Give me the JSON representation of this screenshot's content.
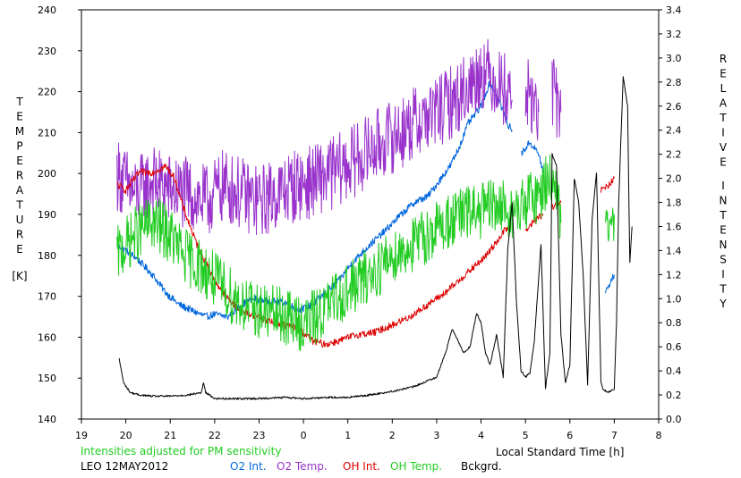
{
  "chart_data": {
    "type": "line",
    "left_axis": {
      "label_letters": [
        "T",
        "E",
        "M",
        "P",
        "E",
        "R",
        "A",
        "T",
        "U",
        "R",
        "E"
      ],
      "unit": "[K]",
      "ticks": [
        "140",
        "150",
        "160",
        "170",
        "180",
        "190",
        "200",
        "210",
        "220",
        "230",
        "240"
      ],
      "ylim": [
        140,
        240
      ]
    },
    "right_axis": {
      "label_word1": [
        "R",
        "E",
        "L",
        "A",
        "T",
        "I",
        "V",
        "E"
      ],
      "label_word2": [
        "I",
        "N",
        "T",
        "E",
        "N",
        "S",
        "I",
        "T",
        "Y"
      ],
      "ticks": [
        "0.0",
        "0.2",
        "0.4",
        "0.6",
        "0.8",
        "1.0",
        "1.2",
        "1.4",
        "1.6",
        "1.8",
        "2.0",
        "2.2",
        "2.4",
        "2.6",
        "2.8",
        "3.0",
        "3.2",
        "3.4"
      ],
      "ylim": [
        0,
        3.4
      ]
    },
    "x_axis": {
      "ticks": [
        "19",
        "20",
        "21",
        "22",
        "23",
        "0",
        "1",
        "2",
        "3",
        "4",
        "5",
        "6",
        "7",
        "8"
      ],
      "xlim": [
        19,
        32
      ],
      "label": "Local Standard Time [h]"
    },
    "series": [
      {
        "name": "O2 Int.",
        "axis": "right",
        "color": "#0066dd",
        "noise": 0.03,
        "x": [
          19.8,
          20.2,
          20.6,
          20.9,
          21.2,
          21.5,
          21.8,
          22.0,
          22.3,
          22.6,
          22.9,
          23.2,
          23.6,
          23.9,
          24.2,
          24.5,
          24.8,
          25.1,
          25.5,
          25.8,
          26.2,
          26.5,
          26.8,
          27.0,
          27.3,
          27.5,
          27.7,
          28.0,
          28.2,
          28.4,
          28.6,
          28.7,
          null,
          28.9,
          29.1,
          29.3,
          29.4,
          null,
          30.8,
          31.0
        ],
        "y": [
          1.45,
          1.35,
          1.2,
          1.05,
          0.95,
          0.9,
          0.85,
          0.87,
          0.85,
          0.95,
          1.0,
          0.98,
          0.97,
          0.9,
          0.95,
          1.05,
          1.15,
          1.3,
          1.45,
          1.55,
          1.7,
          1.8,
          1.85,
          1.95,
          2.1,
          2.25,
          2.45,
          2.6,
          2.8,
          2.65,
          2.45,
          2.4,
          null,
          2.2,
          2.3,
          2.2,
          2.05,
          null,
          1.05,
          1.2
        ]
      },
      {
        "name": "O2 Temp.",
        "axis": "left",
        "color": "#9933cc",
        "noise": 9,
        "x": [
          19.8,
          20.2,
          20.6,
          21.0,
          21.4,
          21.8,
          22.2,
          22.6,
          23.0,
          23.4,
          23.8,
          24.2,
          24.6,
          25.0,
          25.4,
          25.8,
          26.2,
          26.6,
          27.0,
          27.4,
          27.8,
          28.0,
          28.2,
          28.4,
          28.6,
          28.7,
          null,
          29.0,
          29.3,
          null,
          29.6,
          29.8
        ],
        "y": [
          200,
          195,
          198,
          196,
          195,
          193,
          197,
          195,
          193,
          195,
          197,
          198,
          200,
          202,
          205,
          208,
          210,
          213,
          215,
          218,
          222,
          225,
          224,
          222,
          220,
          218,
          null,
          220,
          215,
          null,
          220,
          215
        ]
      },
      {
        "name": "OH Int.",
        "axis": "right",
        "color": "#dd0000",
        "noise": 0.03,
        "x": [
          19.8,
          20.0,
          20.3,
          20.6,
          20.9,
          21.1,
          21.3,
          21.6,
          22.0,
          22.3,
          22.6,
          23.0,
          23.3,
          23.6,
          23.9,
          24.2,
          24.5,
          24.8,
          25.2,
          25.6,
          26.0,
          26.4,
          26.8,
          27.2,
          27.5,
          27.8,
          28.1,
          28.4,
          28.6,
          null,
          29.0,
          29.2,
          29.4,
          null,
          29.6,
          29.8,
          null,
          30.7,
          30.9,
          31.0
        ],
        "y": [
          1.95,
          1.9,
          2.05,
          2.05,
          2.1,
          2.0,
          1.75,
          1.45,
          1.15,
          1.0,
          0.9,
          0.85,
          0.8,
          0.78,
          0.75,
          0.65,
          0.62,
          0.65,
          0.7,
          0.72,
          0.78,
          0.85,
          0.95,
          1.05,
          1.15,
          1.25,
          1.35,
          1.5,
          1.6,
          null,
          1.55,
          1.65,
          1.7,
          null,
          1.75,
          1.8,
          null,
          1.9,
          1.95,
          2.0
        ]
      },
      {
        "name": "OH Temp.",
        "axis": "left",
        "color": "#22cc22",
        "noise": 7,
        "x": [
          19.8,
          20.2,
          20.6,
          21.0,
          21.3,
          21.6,
          22.0,
          22.4,
          22.8,
          23.2,
          23.6,
          24.0,
          24.4,
          24.8,
          25.2,
          25.6,
          26.0,
          26.4,
          26.8,
          27.2,
          27.6,
          28.0,
          28.4,
          28.8,
          29.0,
          29.3,
          29.6,
          29.8,
          null,
          30.8,
          31.0
        ],
        "y": [
          180,
          185,
          188,
          185,
          180,
          178,
          174,
          170,
          167,
          166,
          165,
          163,
          166,
          170,
          173,
          176,
          180,
          182,
          185,
          188,
          190,
          191,
          192,
          190,
          193,
          195,
          200,
          188,
          null,
          185,
          190
        ]
      },
      {
        "name": "Bckgrd.",
        "axis": "right",
        "color": "#000000",
        "noise": 0.008,
        "x": [
          19.85,
          19.95,
          20.1,
          20.3,
          20.6,
          21.0,
          21.4,
          21.7,
          21.75,
          21.8,
          22.0,
          22.4,
          23.0,
          23.6,
          24.0,
          24.5,
          25.0,
          25.5,
          26.0,
          26.5,
          27.0,
          27.2,
          27.35,
          27.45,
          27.6,
          27.75,
          27.9,
          28.0,
          28.1,
          28.2,
          28.35,
          28.5,
          28.6,
          28.7,
          28.8,
          28.9,
          29.0,
          29.1,
          29.2,
          29.35,
          29.45,
          29.55,
          29.6,
          29.7,
          29.8,
          29.9,
          30.0,
          30.1,
          30.2,
          30.3,
          30.4,
          30.5,
          30.6,
          30.7,
          30.75,
          30.85,
          31.0,
          31.05,
          31.1,
          31.2,
          31.3,
          31.35,
          31.4
        ],
        "y": [
          0.5,
          0.3,
          0.22,
          0.2,
          0.19,
          0.19,
          0.2,
          0.22,
          0.3,
          0.22,
          0.17,
          0.17,
          0.17,
          0.18,
          0.17,
          0.18,
          0.18,
          0.2,
          0.23,
          0.27,
          0.35,
          0.55,
          0.75,
          0.68,
          0.55,
          0.6,
          0.88,
          0.8,
          0.55,
          0.45,
          0.7,
          0.35,
          1.4,
          1.8,
          0.95,
          0.4,
          0.35,
          0.38,
          0.65,
          1.45,
          0.25,
          0.55,
          2.2,
          2.1,
          0.7,
          0.3,
          0.45,
          2.0,
          1.8,
          1.2,
          0.28,
          1.65,
          2.05,
          0.3,
          0.25,
          0.22,
          0.25,
          0.8,
          1.8,
          2.85,
          2.6,
          1.3,
          1.6
        ]
      }
    ]
  },
  "footer": {
    "note": "Intensities adjusted for PM sensitivity",
    "note_color": "#22cc22",
    "station": "LEO 12MAY2012",
    "legend": [
      {
        "label": "O2 Int.",
        "color": "#0066dd"
      },
      {
        "label": "O2 Temp.",
        "color": "#9933cc"
      },
      {
        "label": "OH Int.",
        "color": "#dd0000"
      },
      {
        "label": "OH Temp.",
        "color": "#22cc22"
      },
      {
        "label": "Bckgrd.",
        "color": "#000000"
      }
    ]
  }
}
